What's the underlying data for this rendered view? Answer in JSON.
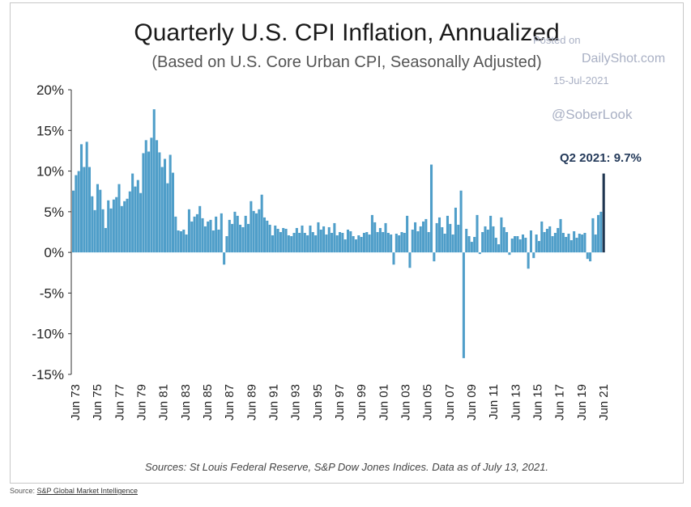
{
  "page": {
    "source_prefix": "Source:",
    "source_link": "S&P Global Market Intelligence"
  },
  "watermark": {
    "line1": "Posted on",
    "line2": "DailyShot.com",
    "line3": "15-Jul-2021",
    "line4": "@SoberLook"
  },
  "colors": {
    "bars": "#4f9ec9",
    "highlight": "#1f3550",
    "axis": "#333333"
  },
  "chart_data": {
    "type": "bar",
    "title": "Quarterly U.S. CPI Inflation, Annualized",
    "subtitle": "(Based on U.S. Core Urban CPI, Seasonally Adjusted)",
    "xlabel": "",
    "ylabel": "",
    "ylim": [
      -15,
      20
    ],
    "yticks": [
      "-15%",
      "-10%",
      "-5%",
      "0%",
      "5%",
      "10%",
      "15%",
      "20%"
    ],
    "ytick_values": [
      -15,
      -10,
      -5,
      0,
      5,
      10,
      15,
      20
    ],
    "xticks": [
      "Jun 73",
      "Jun 75",
      "Jun 77",
      "Jun 79",
      "Jun 81",
      "Jun 83",
      "Jun 85",
      "Jun 87",
      "Jun 89",
      "Jun 91",
      "Jun 93",
      "Jun 95",
      "Jun 97",
      "Jun 99",
      "Jun 01",
      "Jun 03",
      "Jun 05",
      "Jun 07",
      "Jun 09",
      "Jun 11",
      "Jun 13",
      "Jun 15",
      "Jun 17",
      "Jun 19",
      "Jun 21"
    ],
    "annotation": "Q2 2021: 9.7%",
    "sources": "Sources: St Louis Federal Reserve, S&P Dow Jones Indices.  Data as of July 13, 2021.",
    "grid": false,
    "legend": "none",
    "x_start": "Jun 1973",
    "x_end": "Jun 2021",
    "frequency": "quarterly",
    "values": [
      7.6,
      9.5,
      10,
      13.3,
      10.5,
      13.6,
      10.5,
      6.9,
      5.2,
      8.4,
      7.7,
      5.3,
      3,
      6.4,
      5.4,
      6.5,
      6.8,
      8.4,
      5.7,
      6.3,
      6.6,
      7.5,
      9.7,
      8.1,
      8.9,
      7.3,
      12.2,
      13.8,
      12.4,
      14.1,
      17.6,
      13.8,
      12.3,
      10.5,
      11.5,
      8.5,
      12,
      9.8,
      4.4,
      2.7,
      2.6,
      2.8,
      2.2,
      5.3,
      3.8,
      4.4,
      4.7,
      5.7,
      4.2,
      3.2,
      3.8,
      4,
      2.7,
      4.4,
      2.8,
      4.8,
      -1.5,
      2,
      4,
      3.5,
      5,
      4.5,
      3.4,
      3.1,
      4.5,
      3.5,
      6.3,
      5.1,
      4.8,
      5.3,
      7.1,
      4.3,
      3.9,
      3.4,
      2.1,
      3.3,
      2.9,
      2.5,
      3,
      2.9,
      2.1,
      2,
      2.4,
      3,
      2.4,
      3.3,
      2.4,
      2.1,
      3.3,
      2.5,
      2.1,
      3.7,
      2.8,
      3.2,
      2.2,
      3.1,
      2.4,
      3.6,
      2.1,
      2.5,
      2.4,
      1.6,
      2.8,
      2.6,
      2,
      1.6,
      2.1,
      1.9,
      2.4,
      2.5,
      2.2,
      4.6,
      3.7,
      2.5,
      3,
      2.5,
      3.6,
      2.4,
      2.2,
      -1.5,
      2.3,
      2.1,
      2.5,
      2.4,
      4.5,
      -1.9,
      2.8,
      3.7,
      2.6,
      3.2,
      3.8,
      4.1,
      2.5,
      10.8,
      -1.1,
      3.6,
      4.3,
      3.1,
      2.3,
      4.5,
      3.5,
      2.2,
      5.5,
      3.4,
      7.6,
      -13,
      2.9,
      2,
      1.3,
      1.9,
      4.6,
      -0.2,
      2.5,
      3.2,
      2.8,
      4.5,
      3.2,
      1.8,
      1,
      4.3,
      3.1,
      2.5,
      -0.3,
      1.7,
      2,
      2,
      1.6,
      2.2,
      1.8,
      -2,
      2.7,
      -0.7,
      2.2,
      1.4,
      3.8,
      2.5,
      2.9,
      3.2,
      2,
      2.4,
      3,
      4.1,
      2.4,
      1.9,
      2.3,
      1.5,
      2.6,
      1.8,
      2.3,
      2.2,
      2.4,
      -0.8,
      -1.1,
      4.2,
      2.2,
      4.6,
      5,
      9.7
    ]
  }
}
